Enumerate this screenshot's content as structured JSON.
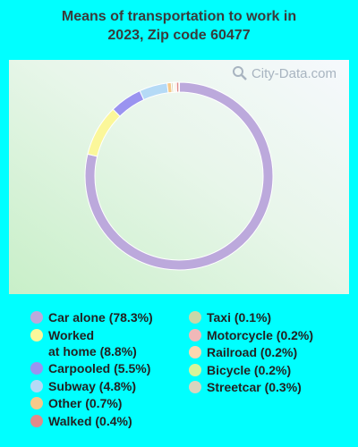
{
  "title_line1": "Means of transportation to work in",
  "title_line2": "2023, Zip code 60477",
  "watermark": "City-Data.com",
  "chart_data": {
    "type": "pie",
    "donut": true,
    "slices": [
      {
        "label": "Car alone",
        "value": 78.3,
        "display": "Car alone (78.3%)",
        "color": "#bca9dc"
      },
      {
        "label": "Worked at home",
        "value": 8.8,
        "display": "Worked\nat home (8.8%)",
        "color": "#fbf79a"
      },
      {
        "label": "Carpooled",
        "value": 5.5,
        "display": "Carpooled (5.5%)",
        "color": "#9a93f0"
      },
      {
        "label": "Subway",
        "value": 4.8,
        "display": "Subway (4.8%)",
        "color": "#b5daf6"
      },
      {
        "label": "Other",
        "value": 0.7,
        "display": "Other (0.7%)",
        "color": "#f6c98a"
      },
      {
        "label": "Walked",
        "value": 0.4,
        "display": "Walked (0.4%)",
        "color": "#e08a8a"
      },
      {
        "label": "Taxi",
        "value": 0.1,
        "display": "Taxi (0.1%)",
        "color": "#c8d8a8"
      },
      {
        "label": "Motorcycle",
        "value": 0.2,
        "display": "Motorcycle (0.2%)",
        "color": "#f0b8b8"
      },
      {
        "label": "Railroad",
        "value": 0.2,
        "display": "Railroad (0.2%)",
        "color": "#fcd7b0"
      },
      {
        "label": "Bicycle",
        "value": 0.2,
        "display": "Bicycle (0.2%)",
        "color": "#d7f59a"
      },
      {
        "label": "Streetcar",
        "value": 0.3,
        "display": "Streetcar (0.3%)",
        "color": "#d8d5bf"
      }
    ],
    "legend_columns": [
      [
        0,
        1,
        2,
        3,
        4,
        5
      ],
      [
        6,
        7,
        8,
        9,
        10
      ]
    ]
  }
}
